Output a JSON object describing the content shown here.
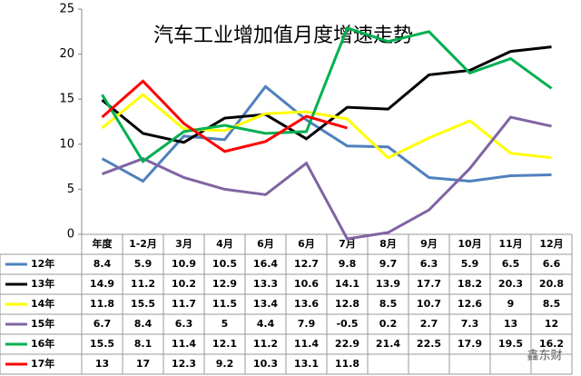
{
  "chart_data": {
    "type": "line",
    "title": "汽车工业增加值月度增速走势",
    "categories": [
      "年度",
      "1-2月",
      "3月",
      "4月",
      "6月",
      "6月",
      "7月",
      "8月",
      "9月",
      "10月",
      "11月",
      "12月"
    ],
    "series": [
      {
        "name": "12年",
        "color": "#4f81bd",
        "values": [
          8.4,
          5.9,
          10.9,
          10.5,
          16.4,
          12.7,
          9.8,
          9.7,
          6.3,
          5.9,
          6.5,
          6.6
        ]
      },
      {
        "name": "13年",
        "color": "#000000",
        "values": [
          14.9,
          11.2,
          10.2,
          12.9,
          13.3,
          10.6,
          14.1,
          13.9,
          17.7,
          18.2,
          20.3,
          20.8
        ]
      },
      {
        "name": "14年",
        "color": "#ffff00",
        "values": [
          11.8,
          15.5,
          11.7,
          11.5,
          13.4,
          13.6,
          12.8,
          8.5,
          10.7,
          12.6,
          9,
          8.5
        ]
      },
      {
        "name": "15年",
        "color": "#8064a2",
        "values": [
          6.7,
          8.4,
          6.3,
          5,
          4.4,
          7.9,
          -0.5,
          0.2,
          2.7,
          7.3,
          13,
          12
        ]
      },
      {
        "name": "16年",
        "color": "#00b050",
        "values": [
          15.5,
          8.1,
          11.4,
          12.1,
          11.2,
          11.4,
          22.9,
          21.4,
          22.5,
          17.9,
          19.5,
          16.2
        ]
      },
      {
        "name": "17年",
        "color": "#ff0000",
        "values": [
          13,
          17,
          12.3,
          9.2,
          10.3,
          13.1,
          11.8,
          null,
          null,
          null,
          null,
          null
        ]
      }
    ],
    "ylim": [
      0,
      25
    ],
    "yticks": [
      0,
      5,
      10,
      15,
      20,
      25
    ],
    "watermark": "鑫东财"
  }
}
